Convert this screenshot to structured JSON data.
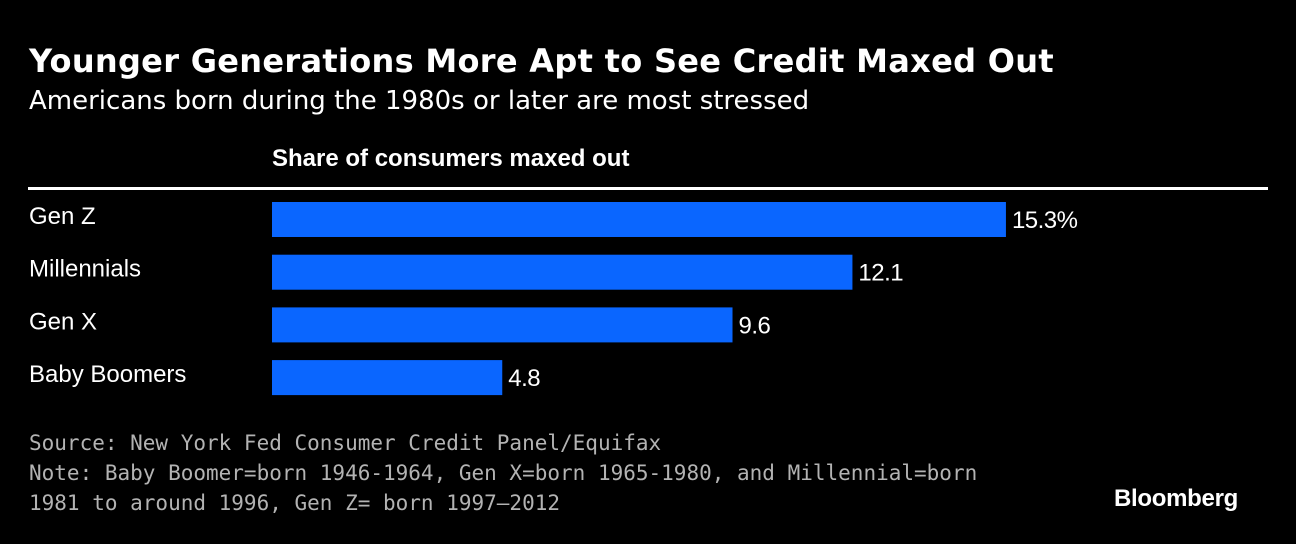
{
  "header": {
    "title": "Younger Generations More Apt to See Credit Maxed Out",
    "subtitle": "Americans born during the 1980s or later are most stressed"
  },
  "chart_data": {
    "type": "bar",
    "orientation": "horizontal",
    "column_header": "Share of consumers maxed out",
    "categories": [
      "Gen Z",
      "Millennials",
      "Gen X",
      "Baby Boomers"
    ],
    "values": [
      15.3,
      12.1,
      9.6,
      4.8
    ],
    "value_labels": [
      "15.3%",
      "12.1",
      "9.6",
      "4.8"
    ],
    "unit": "%",
    "bar_color": "#0a66ff",
    "grid": false,
    "legend": "none"
  },
  "footer": {
    "source": "Source: New York Fed Consumer Credit Panel/Equifax",
    "note_line1": "Note: Baby Boomer=born 1946-1964, Gen X=born 1965-1980, and Millennial=born",
    "note_line2": "1981 to around 1996, Gen Z= born 1997–2012"
  },
  "brand": {
    "logo_text": "Bloomberg"
  },
  "colors": {
    "background": "#000000",
    "text": "#ffffff",
    "footer_text": "#b3b3b3",
    "bar": "#0a66ff"
  }
}
